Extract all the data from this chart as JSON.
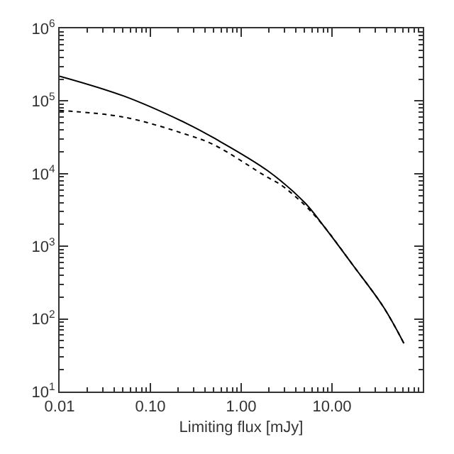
{
  "chart_data": {
    "type": "line",
    "xlabel": "Limiting flux [mJy]",
    "log": "xy",
    "xlim": [
      0.01,
      100
    ],
    "xticks": [
      {
        "value": 0.01,
        "label": "0.01"
      },
      {
        "value": 0.1,
        "label": "0.10"
      },
      {
        "value": 1,
        "label": "1.00"
      },
      {
        "value": 10,
        "label": "10.00"
      }
    ],
    "ylim": [
      10,
      1000000
    ],
    "yticks": [
      {
        "value": 10,
        "label": "10$^{1}$"
      },
      {
        "value": 100,
        "label": "10$^{2}$"
      },
      {
        "value": 1000,
        "label": "10$^{3}$"
      },
      {
        "value": 10000,
        "label": "10$^{4}$"
      },
      {
        "value": 100000,
        "label": "10$^{5}$"
      },
      {
        "value": 1000000,
        "label": "10$^{6}$"
      }
    ],
    "legend": false,
    "marker": "none",
    "series": [
      {
        "color": "#000000",
        "line_style": "solid",
        "x": [
          0.01,
          0.051,
          0.26,
          0.5,
          1.95,
          5.0,
          8.1,
          17,
          37,
          62
        ],
        "values": [
          220000,
          117000,
          48000,
          31000,
          11000,
          4000,
          1900,
          550,
          145,
          46
        ]
      },
      {
        "color": "#000000",
        "line_style": "dotted",
        "x": [
          0.01,
          0.051,
          0.26,
          0.5,
          1.95,
          2.7,
          5.0,
          8.1,
          17,
          37,
          62
        ],
        "values": [
          74000,
          60000,
          34000,
          25000,
          8900,
          7100,
          3700,
          1900,
          550,
          145,
          46
        ]
      }
    ]
  }
}
